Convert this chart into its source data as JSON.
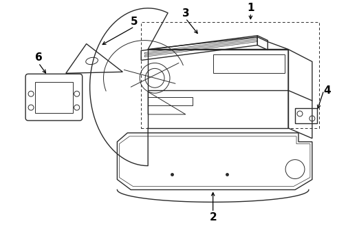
{
  "background_color": "#ffffff",
  "line_color": "#2a2a2a",
  "label_color": "#000000",
  "fig_width": 4.9,
  "fig_height": 3.6,
  "dpi": 100,
  "label_fontsize": 10,
  "label_fontsize_large": 11
}
